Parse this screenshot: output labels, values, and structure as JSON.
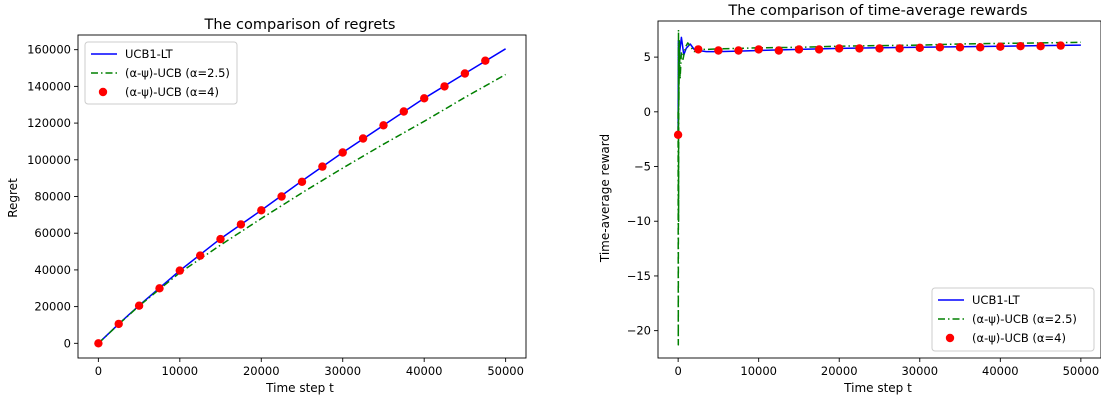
{
  "chart_data": [
    {
      "type": "line",
      "title": "The comparison of regrets",
      "xlabel": "Time step t",
      "ylabel": "Regret",
      "xlim": [
        -2500,
        52500
      ],
      "ylim": [
        -8000,
        168000
      ],
      "xticks": [
        0,
        10000,
        20000,
        30000,
        40000,
        50000
      ],
      "yticks": [
        0,
        20000,
        40000,
        60000,
        80000,
        100000,
        120000,
        140000,
        160000
      ],
      "grid": false,
      "legend_position": "top-left",
      "series": [
        {
          "name": "UCB1-LT",
          "style": "solid-line",
          "color": "#0000ff",
          "x": [
            0,
            2500,
            5000,
            10000,
            15000,
            20000,
            25000,
            30000,
            35000,
            40000,
            45000,
            50000
          ],
          "y": [
            0,
            10600,
            20600,
            39600,
            57000,
            72500,
            88500,
            104000,
            118800,
            133500,
            147000,
            160500
          ]
        },
        {
          "name": "(α-ψ)-UCB (α=2.5)",
          "style": "dash-dot-line",
          "color": "#008000",
          "x": [
            0,
            2500,
            5000,
            10000,
            15000,
            20000,
            25000,
            30000,
            35000,
            40000,
            45000,
            50000
          ],
          "y": [
            0,
            10400,
            20400,
            38500,
            53500,
            68000,
            82000,
            95500,
            108500,
            121000,
            134000,
            146500
          ]
        },
        {
          "name": "(α-ψ)-UCB (α=4)",
          "style": "markers",
          "color": "#ff0000",
          "x": [
            0,
            2500,
            5000,
            7500,
            10000,
            12500,
            15000,
            17500,
            20000,
            22500,
            25000,
            27500,
            30000,
            32500,
            35000,
            37500,
            40000,
            42500,
            45000,
            47500
          ],
          "y": [
            0,
            10600,
            20500,
            30000,
            39600,
            47800,
            56800,
            64800,
            72500,
            80000,
            88000,
            96300,
            104000,
            111600,
            118800,
            126300,
            133500,
            140000,
            147000,
            154000
          ]
        }
      ]
    },
    {
      "type": "line",
      "title": "The comparison of time-average rewards",
      "xlabel": "Time step t",
      "ylabel": "Time-average reward",
      "xlim": [
        -2500,
        52500
      ],
      "ylim": [
        -22.5,
        8.3
      ],
      "xticks": [
        0,
        10000,
        20000,
        30000,
        40000,
        50000
      ],
      "yticks": [
        5,
        0,
        -5,
        -10,
        -15,
        -20
      ],
      "grid": false,
      "legend_position": "bottom-right",
      "series": [
        {
          "name": "UCB1-LT",
          "style": "solid-line",
          "color": "#0000ff",
          "x": [
            0,
            30,
            60,
            100,
            200,
            400,
            700,
            1000,
            1500,
            2000,
            2500,
            3500,
            5000,
            7500,
            10000,
            15000,
            20000,
            25000,
            30000,
            35000,
            40000,
            45000,
            50000
          ],
          "y": [
            -2,
            6.5,
            0.5,
            4,
            5.5,
            6.8,
            5.2,
            5.8,
            6.2,
            5.7,
            5.6,
            5.5,
            5.5,
            5.55,
            5.6,
            5.7,
            5.8,
            5.85,
            5.9,
            5.95,
            6.0,
            6.05,
            6.1
          ]
        },
        {
          "name": "(α-ψ)-UCB (α=2.5)",
          "style": "dash-dot-line",
          "color": "#008000",
          "x": [
            0,
            20,
            40,
            60,
            80,
            100,
            150,
            250,
            400,
            600,
            900,
            1200,
            1600,
            2000,
            2500,
            3500,
            5000,
            7500,
            10000,
            15000,
            20000,
            25000,
            30000,
            35000,
            40000,
            45000,
            50000
          ],
          "y": [
            0,
            -21.3,
            7.5,
            -10,
            6,
            1,
            6.5,
            3,
            5.5,
            4.8,
            5.9,
            6.3,
            5.9,
            5.5,
            5.7,
            5.7,
            5.75,
            5.8,
            5.85,
            5.9,
            6.0,
            6.05,
            6.1,
            6.2,
            6.25,
            6.3,
            6.35
          ]
        },
        {
          "name": "(α-ψ)-UCB (α=4)",
          "style": "markers",
          "color": "#ff0000",
          "x": [
            0,
            2500,
            5000,
            7500,
            10000,
            12500,
            15000,
            17500,
            20000,
            22500,
            25000,
            27500,
            30000,
            32500,
            35000,
            37500,
            40000,
            42500,
            45000,
            47500
          ],
          "y": [
            -2.1,
            5.7,
            5.6,
            5.6,
            5.7,
            5.6,
            5.7,
            5.7,
            5.8,
            5.8,
            5.8,
            5.8,
            5.85,
            5.9,
            5.9,
            5.9,
            5.95,
            6.0,
            6.0,
            6.05
          ]
        }
      ]
    }
  ]
}
